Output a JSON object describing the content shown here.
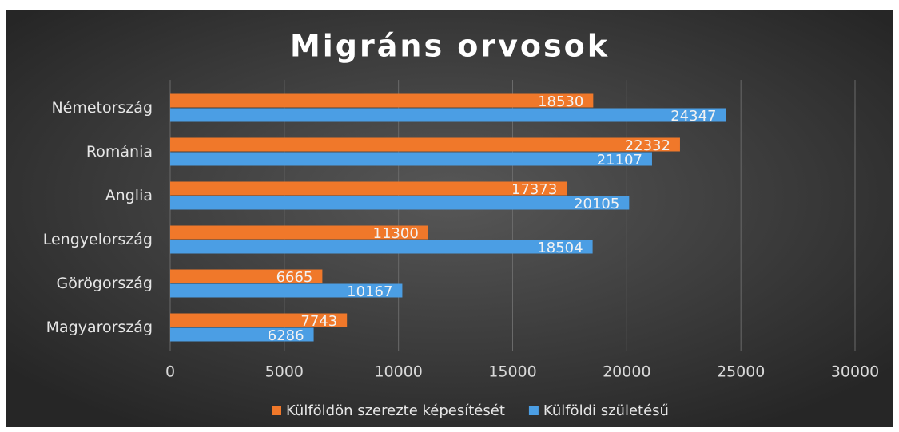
{
  "chart_data": {
    "type": "bar",
    "orientation": "horizontal",
    "title": "Migráns orvosok",
    "categories": [
      "Németország",
      "Románia",
      "Anglia",
      "Lengyelország",
      "Görögország",
      "Magyarország"
    ],
    "series": [
      {
        "name": "Külföldön szerezte képesítését",
        "color": "#f0782a",
        "values": [
          18530,
          22332,
          17373,
          11300,
          6665,
          7743
        ]
      },
      {
        "name": "Külföldi születésű",
        "color": "#4b9ee4",
        "values": [
          24347,
          21107,
          20105,
          18504,
          10167,
          6286
        ]
      }
    ],
    "xlim": [
      0,
      30000
    ],
    "xticks": [
      0,
      5000,
      10000,
      15000,
      20000,
      25000,
      30000
    ],
    "grid": true,
    "legend": "bottom"
  }
}
